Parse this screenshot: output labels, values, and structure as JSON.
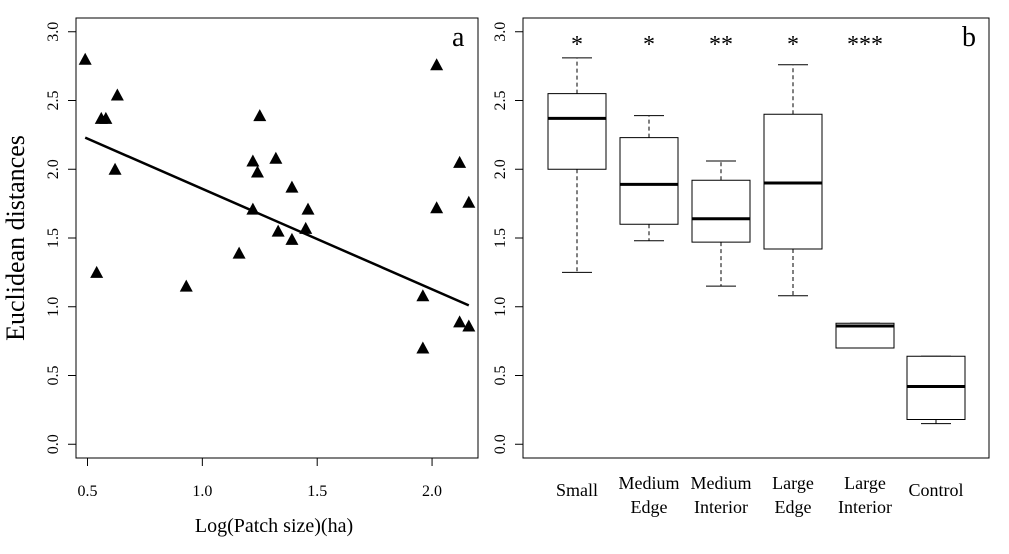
{
  "chart_data": [
    {
      "type": "scatter",
      "panel_label": "a",
      "xlabel": "Log(Patch size)(ha)",
      "ylabel": "Euclidean distances",
      "xlim": [
        0.45,
        2.2
      ],
      "ylim": [
        -0.1,
        3.1
      ],
      "xticks": [
        0.5,
        1.0,
        1.5,
        2.0
      ],
      "xtick_labels": [
        "0.5",
        "1.0",
        "1.5",
        "2.0"
      ],
      "yticks": [
        0.0,
        0.5,
        1.0,
        1.5,
        2.0,
        2.5,
        3.0
      ],
      "ytick_labels": [
        "0.0",
        "0.5",
        "1.0",
        "1.5",
        "2.0",
        "2.5",
        "3.0"
      ],
      "marker": "filled-triangle",
      "points": [
        {
          "x": 0.49,
          "y": 2.8
        },
        {
          "x": 0.54,
          "y": 1.25
        },
        {
          "x": 0.56,
          "y": 2.37
        },
        {
          "x": 0.58,
          "y": 2.37
        },
        {
          "x": 0.62,
          "y": 2.0
        },
        {
          "x": 0.63,
          "y": 2.54
        },
        {
          "x": 0.93,
          "y": 1.15
        },
        {
          "x": 1.16,
          "y": 1.39
        },
        {
          "x": 1.22,
          "y": 2.06
        },
        {
          "x": 1.22,
          "y": 1.71
        },
        {
          "x": 1.24,
          "y": 1.98
        },
        {
          "x": 1.25,
          "y": 2.39
        },
        {
          "x": 1.32,
          "y": 2.08
        },
        {
          "x": 1.33,
          "y": 1.55
        },
        {
          "x": 1.39,
          "y": 1.87
        },
        {
          "x": 1.39,
          "y": 1.49
        },
        {
          "x": 1.45,
          "y": 1.57
        },
        {
          "x": 1.46,
          "y": 1.71
        },
        {
          "x": 1.96,
          "y": 1.08
        },
        {
          "x": 1.96,
          "y": 0.7
        },
        {
          "x": 2.02,
          "y": 2.76
        },
        {
          "x": 2.02,
          "y": 1.72
        },
        {
          "x": 2.12,
          "y": 2.05
        },
        {
          "x": 2.12,
          "y": 0.89
        },
        {
          "x": 2.16,
          "y": 1.76
        },
        {
          "x": 2.16,
          "y": 0.86
        }
      ],
      "fit_line": {
        "x": [
          0.49,
          2.16
        ],
        "y": [
          2.23,
          1.01
        ]
      },
      "grid": false,
      "legend": "none"
    },
    {
      "type": "box",
      "panel_label": "b",
      "ylim": [
        -0.1,
        3.1
      ],
      "yticks": [
        0.0,
        0.5,
        1.0,
        1.5,
        2.0,
        2.5,
        3.0
      ],
      "ytick_labels": [
        "0.0",
        "0.5",
        "1.0",
        "1.5",
        "2.0",
        "2.5",
        "3.0"
      ],
      "categories": [
        {
          "lines": [
            "Small"
          ],
          "significance": "*",
          "min": 1.25,
          "q1": 2.0,
          "median": 2.37,
          "q3": 2.55,
          "max": 2.81
        },
        {
          "lines": [
            "Medium",
            "Edge"
          ],
          "significance": "*",
          "min": 1.48,
          "q1": 1.6,
          "median": 1.89,
          "q3": 2.23,
          "max": 2.39
        },
        {
          "lines": [
            "Medium",
            "Interior"
          ],
          "significance": "**",
          "min": 1.15,
          "q1": 1.47,
          "median": 1.64,
          "q3": 1.92,
          "max": 2.06
        },
        {
          "lines": [
            "Large",
            "Edge"
          ],
          "significance": "*",
          "min": 1.08,
          "q1": 1.42,
          "median": 1.9,
          "q3": 2.4,
          "max": 2.76
        },
        {
          "lines": [
            "Large",
            "Interior"
          ],
          "significance": "***",
          "min": 0.7,
          "q1": 0.7,
          "median": 0.86,
          "q3": 0.88,
          "max": 0.88
        },
        {
          "lines": [
            "Control"
          ],
          "significance": "",
          "min": 0.15,
          "q1": 0.18,
          "median": 0.42,
          "q3": 0.64,
          "max": 0.64
        }
      ],
      "grid": false,
      "legend": "none"
    }
  ]
}
